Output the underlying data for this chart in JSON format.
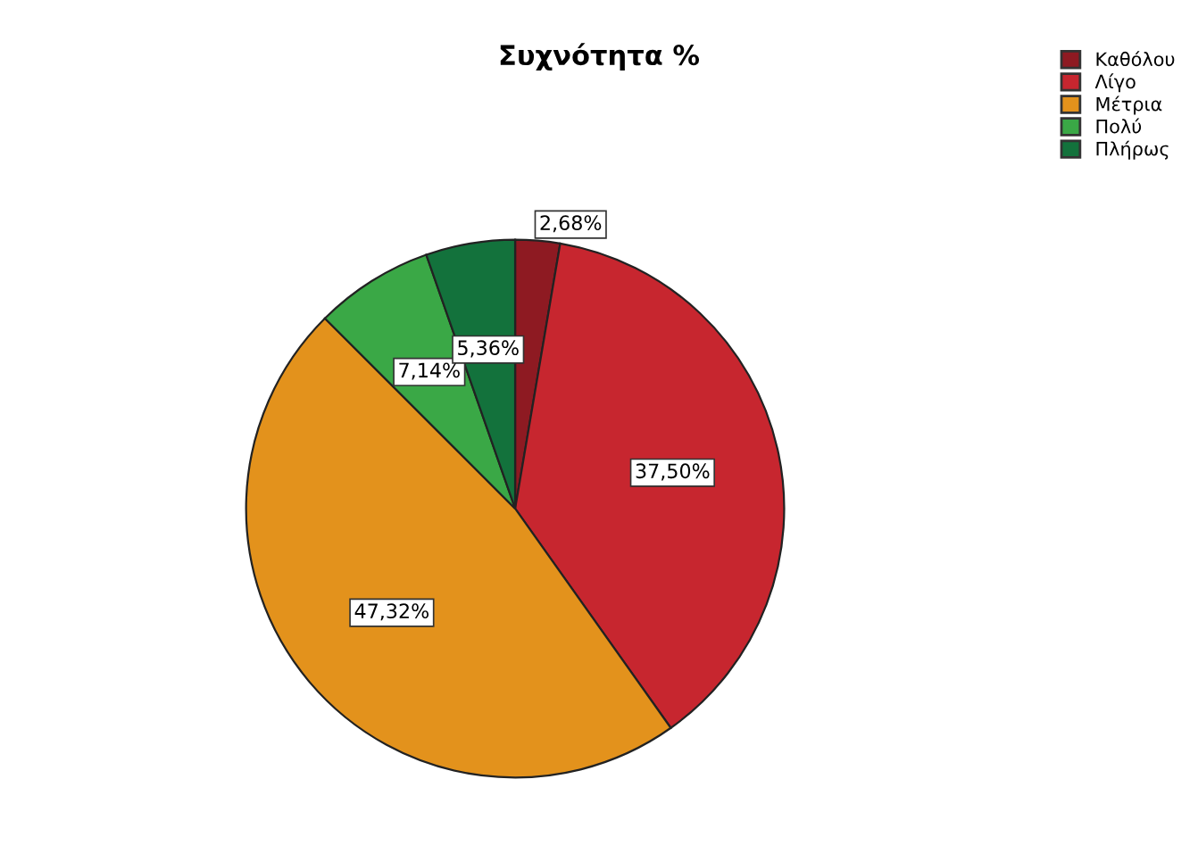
{
  "chart_data": {
    "type": "pie",
    "title": "Συχνότητα %",
    "categories": [
      "Καθόλου",
      "Λίγο",
      "Μέτρια",
      "Πολύ",
      "Πλήρως"
    ],
    "values": [
      2.68,
      37.5,
      47.32,
      7.14,
      5.36
    ],
    "value_labels": [
      "2,68%",
      "37,50%",
      "47,32%",
      "7,14%",
      "5,36%"
    ],
    "colors": [
      "#8e1a22",
      "#c7262f",
      "#e3921c",
      "#3aa846",
      "#13723c"
    ],
    "legend": "top right"
  }
}
